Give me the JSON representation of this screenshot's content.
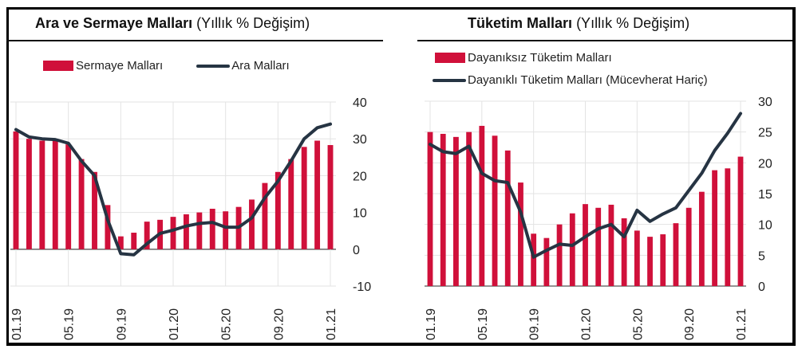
{
  "chart_data": [
    {
      "type": "bar+line",
      "title": "Ara ve Sermaye Malları",
      "subtitle": "(Yıllık % Değişim)",
      "x": [
        "01.19",
        "02.19",
        "03.19",
        "04.19",
        "05.19",
        "06.19",
        "07.19",
        "08.19",
        "09.19",
        "10.19",
        "11.19",
        "12.19",
        "01.20",
        "02.20",
        "03.20",
        "04.20",
        "05.20",
        "06.20",
        "07.20",
        "08.20",
        "09.20",
        "10.20",
        "11.20",
        "12.20",
        "01.21"
      ],
      "tick_labels": [
        "01.19",
        "05.19",
        "09.19",
        "01.20",
        "05.20",
        "09.20",
        "01.21"
      ],
      "ylim": [
        -10,
        40
      ],
      "yticks": [
        "40",
        "30",
        "20",
        "10",
        "0",
        "-10"
      ],
      "grid": true,
      "legend": "top",
      "series": [
        {
          "name": "Sermaye Malları",
          "type": "bar",
          "color": "#d0103a",
          "values": [
            32,
            30,
            29.5,
            29.5,
            28.5,
            24.5,
            21,
            12,
            3.5,
            4.5,
            7.5,
            8,
            8.8,
            9.5,
            10,
            11,
            10.3,
            11.5,
            13.5,
            18,
            21,
            24.5,
            27.8,
            29.5,
            28.3
          ]
        },
        {
          "name": "Ara Malları",
          "type": "line",
          "color": "#263443",
          "values": [
            32.5,
            30.5,
            30,
            29.8,
            28.8,
            24,
            20,
            8,
            -1.2,
            -1.5,
            1.5,
            4.3,
            5.2,
            6.3,
            7,
            7.3,
            6,
            6,
            8.5,
            14,
            18.5,
            24,
            30,
            33,
            34
          ]
        }
      ]
    },
    {
      "type": "bar+line",
      "title": "Tüketim Malları",
      "subtitle": "(Yıllık % Değişim)",
      "x": [
        "01.19",
        "02.19",
        "03.19",
        "04.19",
        "05.19",
        "06.19",
        "07.19",
        "08.19",
        "09.19",
        "10.19",
        "11.19",
        "12.19",
        "01.20",
        "02.20",
        "03.20",
        "04.20",
        "05.20",
        "06.20",
        "07.20",
        "08.20",
        "09.20",
        "10.20",
        "11.20",
        "12.20",
        "01.21"
      ],
      "tick_labels": [
        "01.19",
        "05.19",
        "09.19",
        "01.20",
        "05.20",
        "09.20",
        "01.21"
      ],
      "ylim": [
        0,
        30
      ],
      "yticks": [
        "30",
        "25",
        "20",
        "15",
        "10",
        "5",
        "0"
      ],
      "grid": true,
      "legend": "top",
      "series": [
        {
          "name": "Dayanıksız Tüketim Malları",
          "type": "bar",
          "color": "#d0103a",
          "values": [
            25,
            24.7,
            24.2,
            25,
            26,
            24.4,
            22,
            16.8,
            8.5,
            7.8,
            10,
            11.8,
            13.3,
            12.7,
            13.2,
            11,
            9,
            8,
            8.4,
            10.2,
            12.7,
            15.3,
            18.8,
            19.1,
            21
          ]
        },
        {
          "name": "Dayanıklı Tüketim Malları (Mücevherat Hariç)",
          "type": "line",
          "color": "#263443",
          "values": [
            23,
            21.8,
            21.5,
            22.7,
            18.3,
            17.1,
            16.8,
            12,
            4.7,
            5.8,
            6.8,
            6.6,
            8,
            9.3,
            10,
            8,
            12.3,
            10.5,
            11.7,
            12.7,
            15.5,
            18.3,
            22,
            24.8,
            28
          ]
        }
      ]
    }
  ]
}
